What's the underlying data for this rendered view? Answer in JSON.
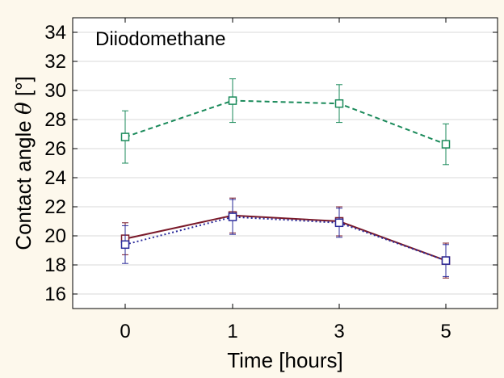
{
  "chart_data": {
    "type": "line",
    "annotation": "Diiodomethane",
    "xlabel": "Time [hours]",
    "ylabel_prefix": "Contact angle ",
    "ylabel_symbol": "θ",
    "ylabel_suffix": " [°]",
    "categories": [
      "0",
      "1",
      "3",
      "5"
    ],
    "ylim": [
      15,
      35
    ],
    "yticks": [
      16,
      18,
      20,
      22,
      24,
      26,
      28,
      30,
      32,
      34
    ],
    "grid": true,
    "series": [
      {
        "color": "#1a8a5a",
        "dash": "dashed",
        "values": [
          26.8,
          29.3,
          29.1,
          26.3
        ],
        "err": [
          1.8,
          1.5,
          1.3,
          1.4
        ]
      },
      {
        "color": "#7a1a2a",
        "dash": "solid",
        "values": [
          19.8,
          21.4,
          21.0,
          18.3
        ],
        "err": [
          1.1,
          1.2,
          1.0,
          1.2
        ]
      },
      {
        "color": "#2a2a9a",
        "dash": "dotted",
        "values": [
          19.4,
          21.3,
          20.9,
          18.3
        ],
        "err": [
          1.3,
          1.2,
          1.0,
          1.1
        ]
      }
    ]
  }
}
